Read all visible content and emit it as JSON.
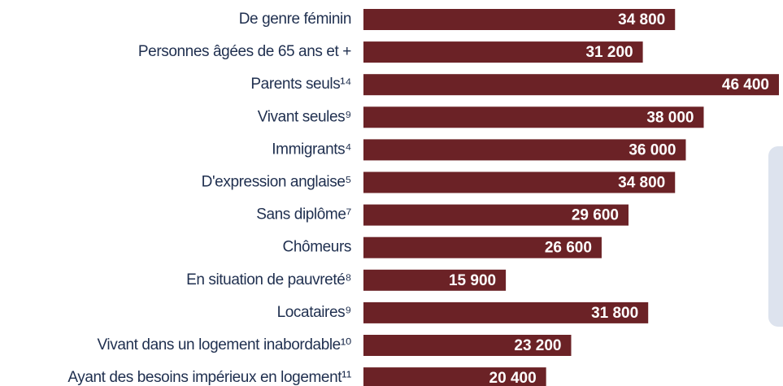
{
  "chart_data": {
    "type": "bar",
    "orientation": "horizontal",
    "color": "#6b2226",
    "categories": [
      "De genre féminin",
      "Personnes âgées de 65 ans et +",
      "Parents seuls¹⁴",
      "Vivant seules⁹",
      "Immigrants⁴",
      "D'expression anglaise⁵",
      "Sans diplôme⁷",
      "Chômeurs",
      "En situation de pauvreté⁸",
      "Locataires⁹",
      "Vivant dans un logement inabordable¹⁰",
      "Ayant des besoins impérieux en logement¹¹"
    ],
    "values": [
      34800,
      31200,
      46400,
      38000,
      36000,
      34800,
      29600,
      26600,
      15900,
      31800,
      23200,
      20400
    ],
    "value_labels": [
      "34 800",
      "31 200",
      "46 400",
      "38 000",
      "36 000",
      "34 800",
      "29 600",
      "26 600",
      "15 900",
      "31 800",
      "23 200",
      "20 400"
    ]
  }
}
